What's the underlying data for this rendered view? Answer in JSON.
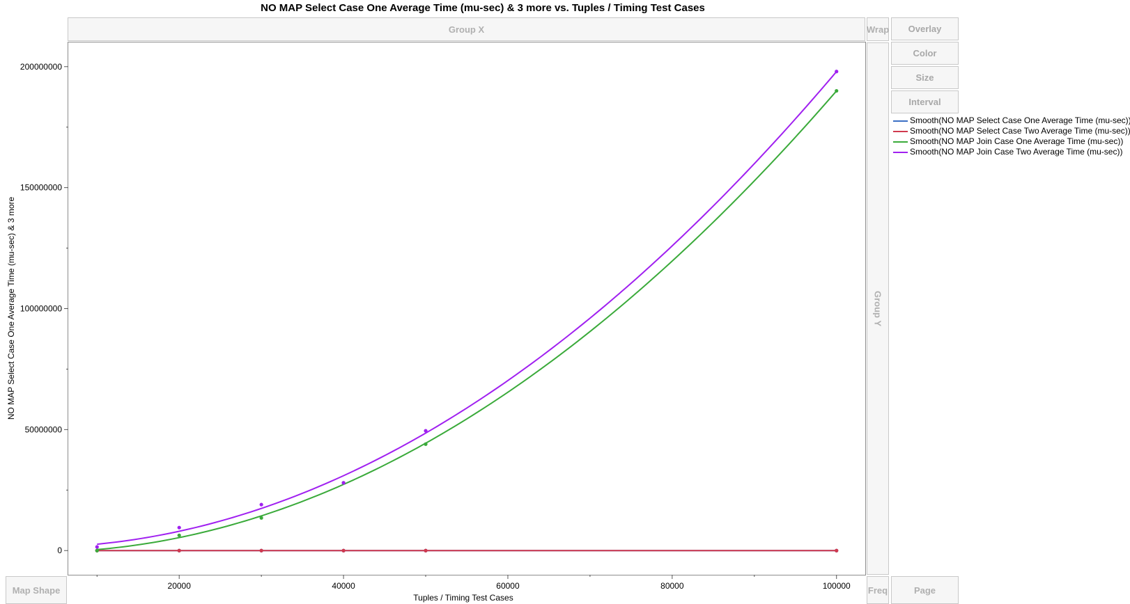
{
  "chart_data": {
    "type": "line",
    "title": "NO MAP Select Case One Average Time (mu-sec) & 3 more vs. Tuples / Timing Test Cases",
    "xlabel": "Tuples / Timing Test Cases",
    "ylabel": "NO MAP Select Case One Average Time (mu-sec) & 3 more",
    "xlim": [
      6500,
      103500
    ],
    "ylim": [
      -10000000,
      210000000
    ],
    "xticks": [
      "20000",
      "40000",
      "60000",
      "80000",
      "100000"
    ],
    "yticks": [
      "0",
      "50000000",
      "100000000",
      "150000000",
      "200000000"
    ],
    "x": [
      10000,
      20000,
      30000,
      40000,
      50000,
      100000
    ],
    "series": [
      {
        "name": "Smooth(NO MAP Select Case One Average Time (mu-sec))",
        "color": "#3a6fc4",
        "values": [
          0,
          0,
          0,
          0,
          0,
          0
        ]
      },
      {
        "name": "Smooth(NO MAP Select Case Two Average Time (mu-sec))",
        "color": "#d0394e",
        "values": [
          0,
          0,
          0,
          0,
          0,
          0
        ]
      },
      {
        "name": "Smooth(NO MAP Join Case One Average Time (mu-sec))",
        "color": "#3aaa3a",
        "values": [
          0,
          6300000,
          13500000,
          28000000,
          44000000,
          190000000
        ]
      },
      {
        "name": "Smooth(NO MAP Join Case Two Average Time (mu-sec))",
        "color": "#a020f0",
        "values": [
          1500000,
          9500000,
          19000000,
          28000000,
          49500000,
          198000000
        ]
      }
    ],
    "legend_position": "right"
  },
  "zones": {
    "group_x": "Group X",
    "group_y": "Group Y",
    "wrap": "Wrap",
    "freq": "Freq",
    "page": "Page",
    "map_shape": "Map Shape"
  },
  "controls": {
    "overlay": "Overlay",
    "color": "Color",
    "size": "Size",
    "interval": "Interval"
  }
}
